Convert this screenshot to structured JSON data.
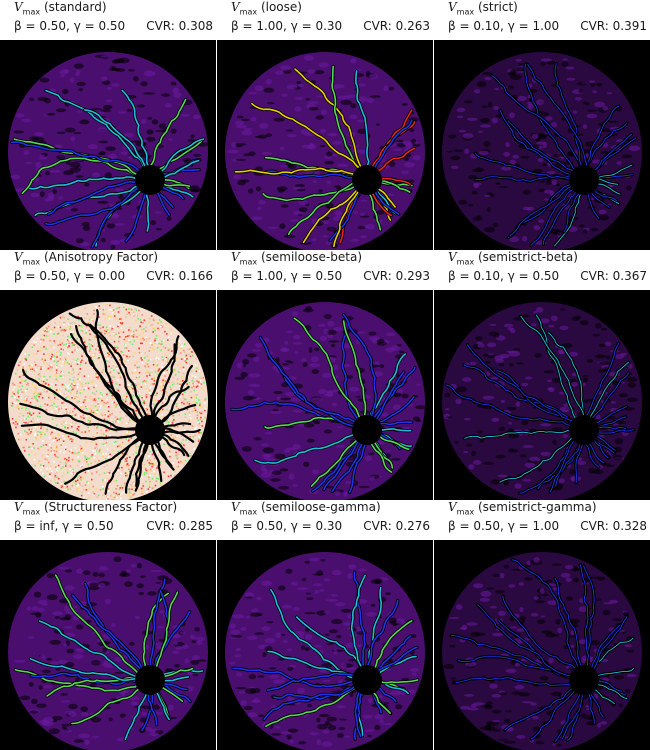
{
  "symbol": "V",
  "symbol_sub": "max",
  "panels": [
    {
      "label": "(standard)",
      "params": "β = 0.50, γ = 0.50",
      "cvr": "CVR: 0.308",
      "style": "standard"
    },
    {
      "label": "(loose)",
      "params": "β = 1.00, γ = 0.30",
      "cvr": "CVR: 0.263",
      "style": "loose"
    },
    {
      "label": "(strict)",
      "params": "β = 0.10, γ = 1.00",
      "cvr": "CVR: 0.391",
      "style": "strict"
    },
    {
      "label": "(Anisotropy Factor)",
      "params": "β = 0.50, γ = 0.00",
      "cvr": "CVR: 0.166",
      "style": "noise"
    },
    {
      "label": "(semiloose-beta)",
      "params": "β = 1.00, γ = 0.50",
      "cvr": "CVR: 0.293",
      "style": "semiloose"
    },
    {
      "label": "(semistrict-beta)",
      "params": "β = 0.10, γ = 0.50",
      "cvr": "CVR: 0.367",
      "style": "semistrict"
    },
    {
      "label": "(Structureness Factor)",
      "params": "β = inf, γ = 0.50",
      "cvr": "CVR: 0.285",
      "style": "standard"
    },
    {
      "label": "(semiloose-gamma)",
      "params": "β = 0.50, γ = 0.30",
      "cvr": "CVR: 0.276",
      "style": "semiloose"
    },
    {
      "label": "(semistrict-gamma)",
      "params": "β = 0.50, γ = 1.00",
      "cvr": "CVR: 0.328",
      "style": "semistrict"
    }
  ],
  "colors": {
    "background": "#000000",
    "tissue_base": "#4a0f6e",
    "vessel_blue": "#1f3cff",
    "vessel_cyan": "#22d3ee",
    "vessel_green": "#5ef05e",
    "vessel_yellow": "#ffe600",
    "vessel_red": "#ff2a1a",
    "noise_base": "#f3dccb"
  }
}
